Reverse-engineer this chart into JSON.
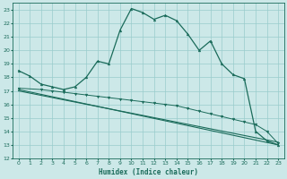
{
  "xlabel": "Humidex (Indice chaleur)",
  "bg_color": "#cce8e8",
  "grid_color": "#99cccc",
  "line_color": "#1a6b5a",
  "xlim": [
    -0.5,
    23.5
  ],
  "ylim": [
    12,
    23.5
  ],
  "yticks": [
    12,
    13,
    14,
    15,
    16,
    17,
    18,
    19,
    20,
    21,
    22,
    23
  ],
  "xticks": [
    0,
    1,
    2,
    3,
    4,
    5,
    6,
    7,
    8,
    9,
    10,
    11,
    12,
    13,
    14,
    15,
    16,
    17,
    18,
    19,
    20,
    21,
    22,
    23
  ],
  "line1_x": [
    0,
    1,
    2,
    3,
    4,
    5,
    6,
    7,
    8,
    9,
    10,
    11,
    12,
    13,
    14,
    15,
    16,
    17,
    18,
    19,
    20,
    21,
    22,
    23
  ],
  "line1_y": [
    18.5,
    18.1,
    17.5,
    17.3,
    17.1,
    17.3,
    18.0,
    19.2,
    19.0,
    21.5,
    23.1,
    22.8,
    22.3,
    22.6,
    22.2,
    21.2,
    20.0,
    20.7,
    19.0,
    18.2,
    17.9,
    14.0,
    13.3,
    13.0
  ],
  "line2_x": [
    0,
    2,
    3,
    4,
    5,
    6,
    7,
    8,
    9,
    10,
    11,
    12,
    13,
    14,
    15,
    16,
    17,
    18,
    19,
    20,
    21,
    22,
    23
  ],
  "line2_y": [
    17.2,
    17.1,
    17.0,
    16.9,
    16.8,
    16.7,
    16.6,
    16.5,
    16.4,
    16.3,
    16.2,
    16.1,
    16.0,
    15.9,
    15.7,
    15.5,
    15.3,
    15.1,
    14.9,
    14.7,
    14.5,
    14.0,
    13.1
  ],
  "line3_x": [
    0,
    23
  ],
  "line3_y": [
    17.0,
    13.2
  ],
  "line4_x": [
    0,
    23
  ],
  "line4_y": [
    17.1,
    13.0
  ]
}
